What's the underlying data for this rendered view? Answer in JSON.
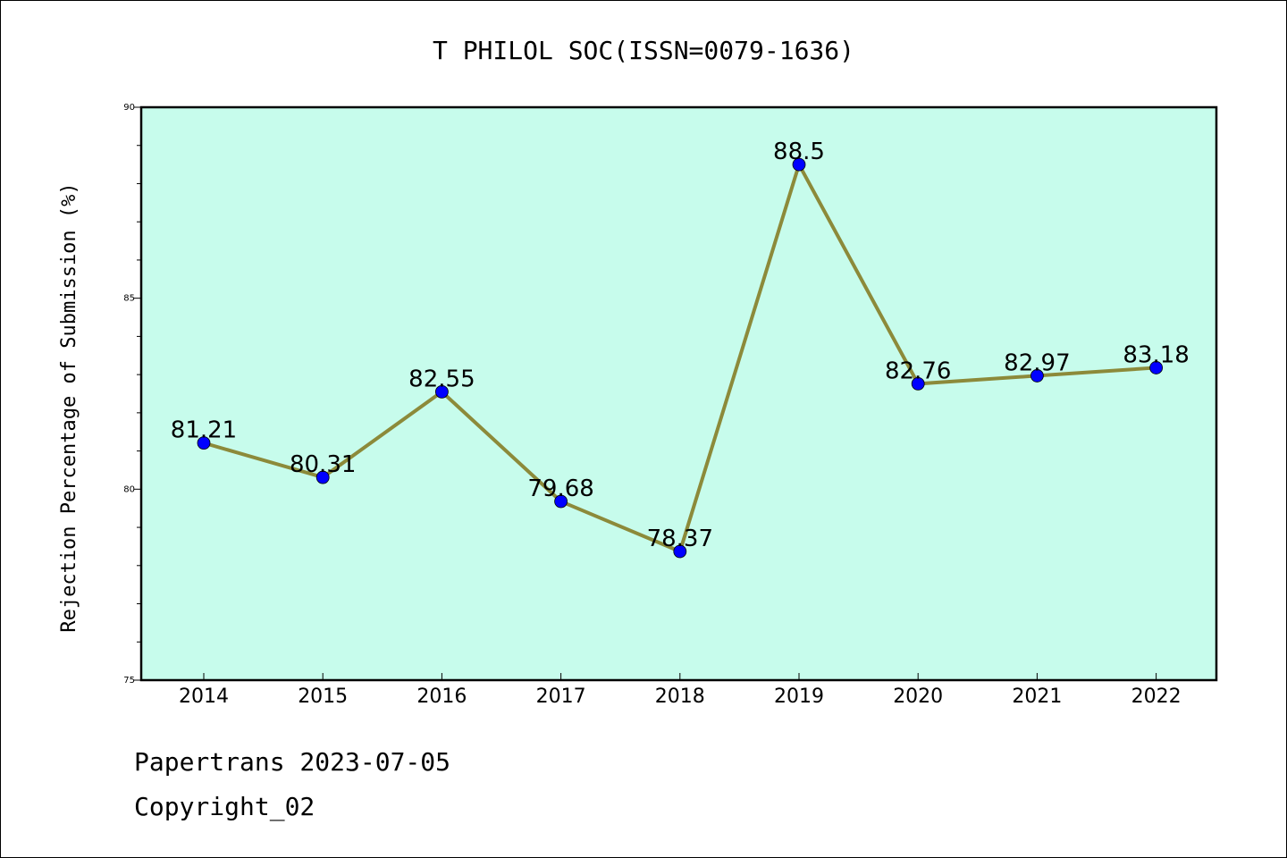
{
  "chart_data": {
    "type": "line",
    "title": "T PHILOL SOC(ISSN=0079-1636)",
    "xlabel": "",
    "ylabel": "Rejection Percentage of Submission (%)",
    "categories": [
      "2014",
      "2015",
      "2016",
      "2017",
      "2018",
      "2019",
      "2020",
      "2021",
      "2022"
    ],
    "values": [
      81.21,
      80.31,
      82.55,
      79.68,
      78.37,
      88.5,
      82.76,
      82.97,
      83.18
    ],
    "data_labels": [
      "81.21",
      "80.31",
      "82.55",
      "79.68",
      "78.37",
      "88.5",
      "82.76",
      "82.97",
      "83.18"
    ],
    "ylim": [
      75,
      90
    ],
    "yticks": [
      75,
      80,
      85,
      90
    ],
    "grid": false,
    "colors": {
      "plot_background": "#c7fcec",
      "line": "#8c8a3a",
      "marker": "#0000ff"
    }
  },
  "footer": {
    "line1": "Papertrans 2023-07-05",
    "line2": "Copyright_02"
  }
}
